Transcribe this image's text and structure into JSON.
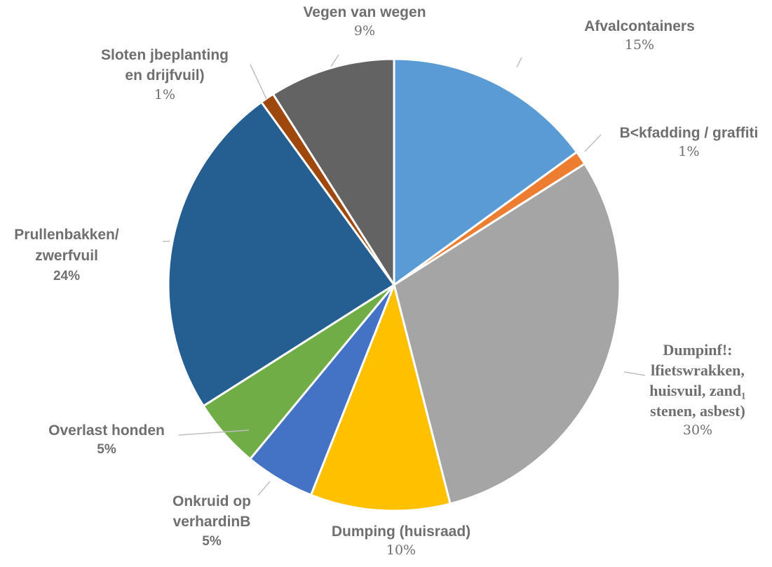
{
  "chart_data": {
    "type": "pie",
    "title": "",
    "slices": [
      {
        "label": "Afvalcontainers",
        "value": 15,
        "pct": "15%",
        "color": "#5b9bd5"
      },
      {
        "label": "B<kfadding / graffiti",
        "value": 1,
        "pct": "1%",
        "color": "#ed7d31"
      },
      {
        "label": "Dumpinf!:\nlfietswrakken,\nhuisvuil, zand₁\nstenen, asbest)",
        "value": 30,
        "pct": "30%",
        "color": "#a5a5a5"
      },
      {
        "label": "Dumping (huisraad)",
        "value": 10,
        "pct": "10%",
        "color": "#ffc000"
      },
      {
        "label": "Onkruid op\nverhardinB",
        "value": 5,
        "pct": "5%",
        "color": "#4472c4"
      },
      {
        "label": "Overlast honden",
        "value": 5,
        "pct": "5%",
        "color": "#70ad47"
      },
      {
        "label": "Prullenbakken/\nzwerfvuil",
        "value": 24,
        "pct": "24%",
        "color": "#255e91"
      },
      {
        "label": "Sloten jbeplanting\nen drijfvuil)",
        "value": 1,
        "pct": "1%",
        "color": "#9e480e"
      },
      {
        "label": "Vegen van wegen",
        "value": 9,
        "pct": "9%",
        "color": "#636363"
      }
    ]
  }
}
